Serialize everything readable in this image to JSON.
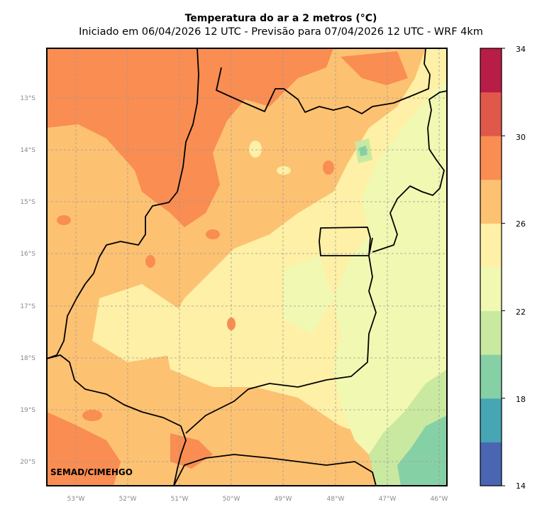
{
  "title": "Temperatura do ar a 2 metros (°C)",
  "subtitle": "Iniciado em 06/04/2026 12 UTC - Previsão para 07/04/2026 12 UTC - WRF 4km",
  "credit": "SEMAD/CIMEHGO",
  "map": {
    "lon_labels": [
      "53°W",
      "52°W",
      "51°W",
      "50°W",
      "49°W",
      "48°W",
      "47°W",
      "46°W"
    ],
    "lat_labels": [
      "13°S",
      "14°S",
      "15°S",
      "16°S",
      "17°S",
      "18°S",
      "19°S",
      "20°S"
    ]
  },
  "colorbar": {
    "ticks": [
      "14",
      "18",
      "22",
      "26",
      "30",
      "34"
    ],
    "colors": [
      "#4a66b2",
      "#47a6b4",
      "#86d0a6",
      "#c9e8a0",
      "#f1f8b2",
      "#fef0a6",
      "#fdc172",
      "#f98d52",
      "#e0584a",
      "#b81d47"
    ]
  }
}
